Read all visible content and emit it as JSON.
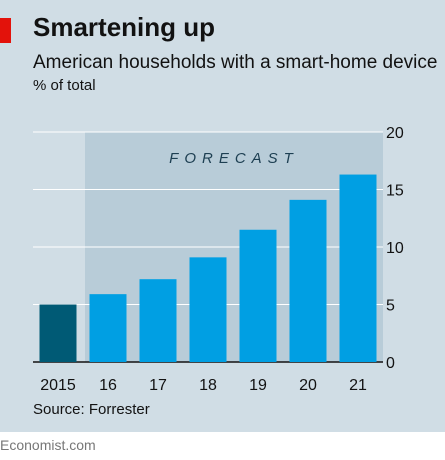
{
  "colors": {
    "panel_bg": "#d0dde5",
    "forecast_band": "#b8ccd8",
    "bar_actual": "#005a75",
    "bar_forecast": "#009fe3",
    "accent_red": "#e3120b",
    "gridline": "#ffffff",
    "text": "#121212",
    "forecast_text": "#1d3f52"
  },
  "header": {
    "title": "Smartening up",
    "subtitle": "American households with a smart-home device",
    "unit": "% of total"
  },
  "source": "Source: Forrester",
  "footer": "Economist.com",
  "chart_data": {
    "type": "bar",
    "title": "Smartening up",
    "subtitle": "American households with a smart-home device",
    "ylabel": "% of total",
    "xlabel": "",
    "categories": [
      "2015",
      "16",
      "17",
      "18",
      "19",
      "20",
      "21"
    ],
    "values": [
      5.0,
      5.9,
      7.2,
      9.1,
      11.5,
      14.1,
      16.3
    ],
    "ylim": [
      0,
      20
    ],
    "yticks": [
      0,
      5,
      10,
      15,
      20
    ],
    "yaxis_side": "right",
    "grid": true,
    "forecast": {
      "label": "FORECAST",
      "from_category": "16",
      "to_category": "21"
    },
    "actual_categories": [
      "2015"
    ]
  }
}
